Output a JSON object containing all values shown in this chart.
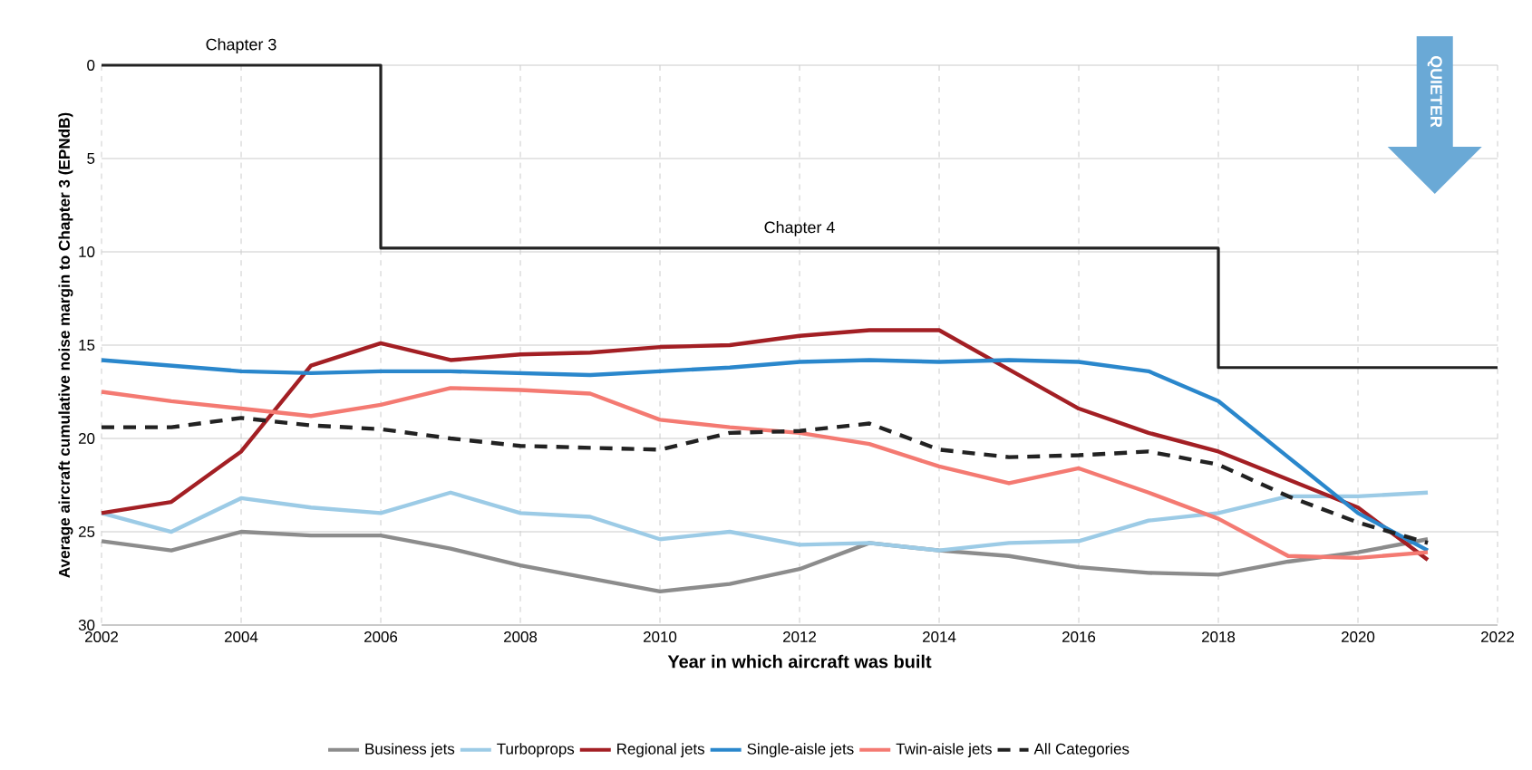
{
  "chart_data": {
    "type": "line",
    "xlabel": "Year in which aircraft was built",
    "ylabel": "Average aircraft cumulative noise margin to Chapter 3 (EPNdB)",
    "x": [
      2002,
      2003,
      2004,
      2005,
      2006,
      2007,
      2008,
      2009,
      2010,
      2011,
      2012,
      2013,
      2014,
      2015,
      2016,
      2017,
      2018,
      2019,
      2020,
      2021
    ],
    "xlim": [
      2002,
      2022
    ],
    "xticks": [
      2002,
      2004,
      2006,
      2008,
      2010,
      2012,
      2014,
      2016,
      2018,
      2020,
      2022
    ],
    "ylim": [
      30,
      0
    ],
    "yticks": [
      0,
      5,
      10,
      15,
      20,
      25,
      30
    ],
    "grid": true,
    "legend": "bottom",
    "line_style": "solid",
    "marker": "none",
    "series": [
      {
        "name": "Business jets",
        "color": "#8c8c8c",
        "values": [
          25.5,
          26.0,
          25.0,
          25.2,
          25.2,
          25.9,
          26.8,
          27.5,
          28.2,
          27.8,
          27.0,
          25.6,
          26.0,
          26.3,
          26.9,
          27.2,
          27.3,
          26.6,
          26.1,
          25.4
        ]
      },
      {
        "name": "Turboprops",
        "color": "#9ccbe6",
        "values": [
          24.0,
          25.0,
          23.2,
          23.7,
          24.0,
          22.9,
          24.0,
          24.2,
          25.4,
          25.0,
          25.7,
          25.6,
          26.0,
          25.6,
          25.5,
          24.4,
          24.0,
          23.1,
          23.1,
          22.9
        ]
      },
      {
        "name": "Regional jets",
        "color": "#a31f24",
        "values": [
          24.0,
          23.4,
          20.7,
          16.1,
          14.9,
          15.8,
          15.5,
          15.4,
          15.1,
          15.0,
          14.5,
          14.2,
          14.2,
          16.3,
          18.4,
          19.7,
          20.7,
          22.2,
          23.7,
          26.5
        ]
      },
      {
        "name": "Single-aisle jets",
        "color": "#2a87cc",
        "values": [
          15.8,
          16.1,
          16.4,
          16.5,
          16.4,
          16.4,
          16.5,
          16.6,
          16.4,
          16.2,
          15.9,
          15.8,
          15.9,
          15.8,
          15.9,
          16.4,
          18.0,
          21.0,
          24.0,
          26.0
        ]
      },
      {
        "name": "Twin-aisle jets",
        "color": "#f47a72",
        "values": [
          17.5,
          18.0,
          18.4,
          18.8,
          18.2,
          17.3,
          17.4,
          17.6,
          19.0,
          19.4,
          19.7,
          20.3,
          21.5,
          22.4,
          21.6,
          22.9,
          24.3,
          26.3,
          26.4,
          26.1
        ]
      },
      {
        "name": "All Categories",
        "color": "#222222",
        "line_style": "dashed",
        "values": [
          19.4,
          19.4,
          18.9,
          19.3,
          19.5,
          20.0,
          20.4,
          20.5,
          20.6,
          19.7,
          19.6,
          19.2,
          20.6,
          21.0,
          20.9,
          20.7,
          21.4,
          23.1,
          24.5,
          25.6
        ]
      },
      {
        "type": "step",
        "color": "#222222",
        "x": [
          2002,
          2006,
          2018,
          2022
        ],
        "values": [
          0,
          9.8,
          16.2,
          16.2
        ]
      }
    ],
    "annotations": [
      {
        "text": "Chapter 3",
        "x": 2004,
        "y": 0
      },
      {
        "text": "Chapter 4",
        "x": 2012,
        "y": 9.8
      },
      "QUIETER"
    ]
  }
}
